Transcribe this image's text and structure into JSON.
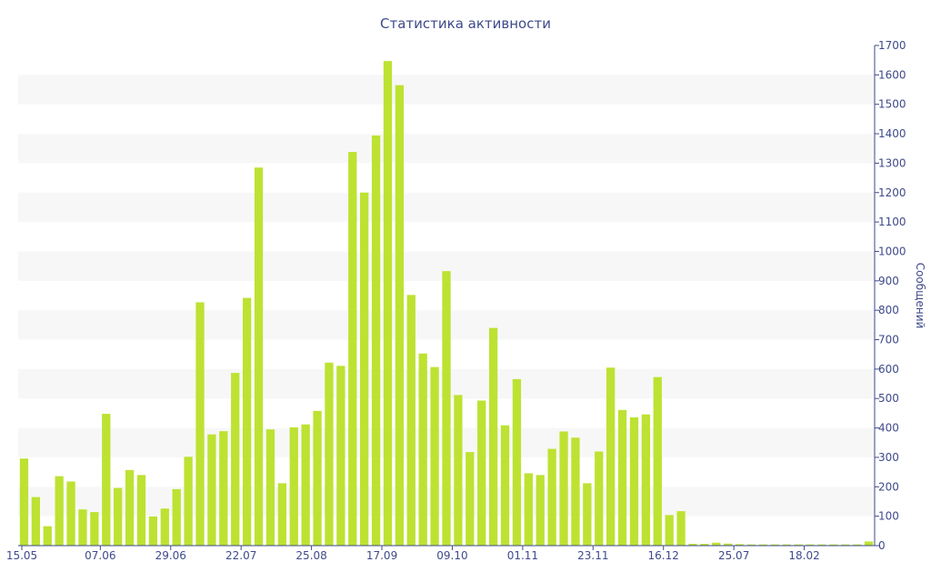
{
  "chart_data": {
    "type": "bar",
    "title": "Статистика активности",
    "ylabel": "Сообщений",
    "xlabel": "",
    "ylim": [
      0,
      1700
    ],
    "y_ticks": [
      0,
      100,
      200,
      300,
      400,
      500,
      600,
      700,
      800,
      900,
      1000,
      1100,
      1200,
      1300,
      1400,
      1500,
      1600,
      1700
    ],
    "y_axis_side": "right",
    "grid": "alternating horizontal bands",
    "bar_color": "#bde232",
    "text_color": "#3e4a8a",
    "x_tick_labels": [
      {
        "index": 0,
        "label": "15.05"
      },
      {
        "index": 6.5,
        "label": "07.06"
      },
      {
        "index": 12.5,
        "label": "29.06"
      },
      {
        "index": 18.5,
        "label": "22.07"
      },
      {
        "index": 24.5,
        "label": "25.08"
      },
      {
        "index": 30.5,
        "label": "17.09"
      },
      {
        "index": 36.5,
        "label": "09.10"
      },
      {
        "index": 42.5,
        "label": "01.11"
      },
      {
        "index": 48.5,
        "label": "23.11"
      },
      {
        "index": 54.5,
        "label": "16.12"
      },
      {
        "index": 60.5,
        "label": "25.07"
      },
      {
        "index": 66.5,
        "label": "18.02"
      }
    ],
    "values": [
      296,
      165,
      66,
      236,
      218,
      123,
      114,
      448,
      196,
      257,
      240,
      99,
      126,
      192,
      302,
      827,
      378,
      389,
      587,
      842,
      1285,
      395,
      212,
      402,
      412,
      458,
      622,
      611,
      1338,
      1200,
      1394,
      1647,
      1565,
      852,
      653,
      607,
      933,
      512,
      318,
      493,
      740,
      409,
      566,
      246,
      240,
      329,
      388,
      367,
      212,
      320,
      605,
      461,
      436,
      446,
      573,
      104,
      117,
      6,
      6,
      10,
      7,
      5,
      4,
      4,
      4,
      4,
      4,
      4,
      4,
      4,
      4,
      4,
      14
    ]
  }
}
